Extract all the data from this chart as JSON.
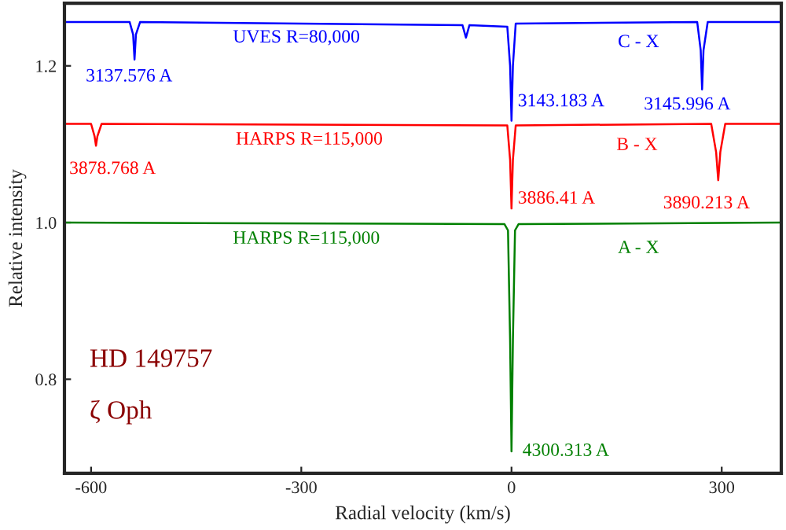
{
  "chart_data": {
    "type": "line",
    "xlabel": "Radial velocity (km/s)",
    "ylabel": "Relative intensity",
    "x": [
      -638,
      -545,
      -540,
      -538,
      -536,
      -530,
      -70,
      -65,
      -60,
      -6,
      -2,
      0,
      2,
      6,
      265,
      270,
      272,
      274,
      280,
      385
    ],
    "series": [
      {
        "name": "UVES R=80,000",
        "color": "#0000ff",
        "values": [
          1.256,
          1.256,
          1.24,
          1.208,
          1.24,
          1.256,
          1.252,
          1.236,
          1.252,
          1.25,
          1.2,
          1.13,
          1.2,
          1.254,
          1.256,
          1.22,
          1.17,
          1.22,
          1.256,
          1.256
        ]
      },
      {
        "name": "HARPS R=115,000",
        "color": "#ff0000",
        "x": [
          -638,
          -600,
          -595,
          -593,
          -591,
          -585,
          -6,
          -2,
          0,
          2,
          6,
          285,
          292,
          295,
          298,
          305,
          385
        ],
        "values": [
          1.126,
          1.126,
          1.11,
          1.098,
          1.11,
          1.126,
          1.124,
          1.08,
          1.018,
          1.08,
          1.124,
          1.126,
          1.09,
          1.054,
          1.09,
          1.126,
          1.126
        ]
      },
      {
        "name": "HARPS R=115,000",
        "color": "#008000",
        "x": [
          -638,
          -10,
          -5,
          -2,
          0,
          2,
          5,
          10,
          385
        ],
        "values": [
          1.0,
          0.998,
          0.99,
          0.85,
          0.708,
          0.85,
          0.99,
          0.998,
          1.0
        ]
      }
    ],
    "xlim": [
      -638,
      385
    ],
    "ylim": [
      0.68,
      1.28
    ],
    "xticks": [
      -600,
      -300,
      0,
      300
    ],
    "yticks": [
      {
        "value": 0.8,
        "label": "0.8"
      },
      {
        "value": 1.0,
        "label": "1.0"
      },
      {
        "value": 1.2,
        "label": "1.2"
      }
    ],
    "grid": false,
    "legend": false,
    "annotations": [
      {
        "text": "3137.576 A",
        "x": -538,
        "y": 1.208
      },
      {
        "text": "3143.183 A",
        "x": 0,
        "y": 1.13
      },
      {
        "text": "3145.996 A",
        "x": 272,
        "y": 1.17
      },
      {
        "text": "3878.768 A",
        "x": -593,
        "y": 1.098
      },
      {
        "text": "3886.41 A",
        "x": 0,
        "y": 1.018
      },
      {
        "text": "3890.213 A",
        "x": 295,
        "y": 1.054
      },
      {
        "text": "4300.313 A",
        "x": 0,
        "y": 0.708
      },
      "C - X",
      "B - X",
      "A - X",
      "HD 149757",
      "ζ Oph"
    ]
  }
}
